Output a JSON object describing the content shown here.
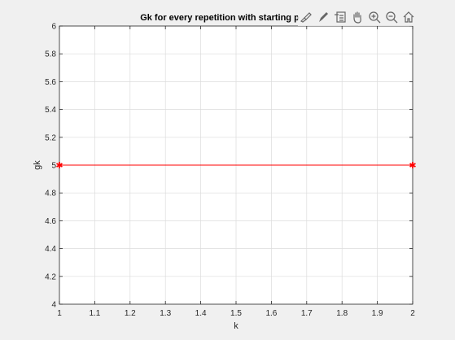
{
  "chart_data": {
    "type": "line",
    "title": "Gk for every repetition with starting p",
    "xlabel": "k",
    "ylabel": "gk",
    "xlim": [
      1,
      2
    ],
    "ylim": [
      4,
      6
    ],
    "x_ticks": [
      "1",
      "1.1",
      "1.2",
      "1.3",
      "1.4",
      "1.5",
      "1.6",
      "1.7",
      "1.8",
      "1.9",
      "2"
    ],
    "y_ticks": [
      "4",
      "4.2",
      "4.4",
      "4.6",
      "4.8",
      "5",
      "5.2",
      "5.4",
      "5.6",
      "5.8",
      "6"
    ],
    "grid": true,
    "series": [
      {
        "x": [
          1,
          2
        ],
        "y": [
          5,
          5
        ],
        "color": "#ff0000",
        "marker": "*"
      }
    ]
  },
  "toolbar": {
    "icons": [
      "brush-icon",
      "pen-icon",
      "legend-icon",
      "pan-icon",
      "zoom-in-icon",
      "zoom-out-icon",
      "home-icon"
    ]
  }
}
